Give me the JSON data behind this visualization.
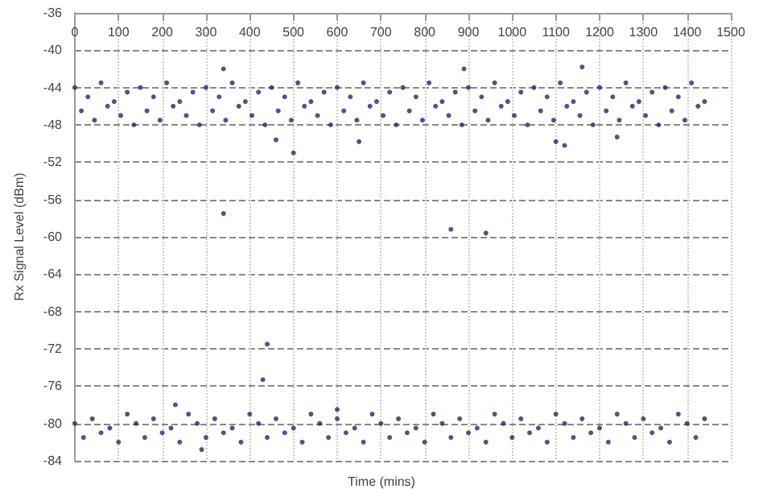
{
  "chart_data": {
    "type": "scatter",
    "xlabel": "Time (mins)",
    "ylabel": "Rx Signal Level (dBm)",
    "x": [
      0,
      15,
      30,
      45,
      60,
      75,
      90,
      105,
      120,
      135,
      150,
      165,
      180,
      195,
      210,
      225,
      240,
      255,
      270,
      285,
      300,
      315,
      330,
      345,
      360,
      375,
      390,
      405,
      420,
      435,
      450,
      465,
      480,
      495,
      510,
      525,
      540,
      555,
      570,
      585,
      600,
      615,
      630,
      645,
      660,
      675,
      690,
      705,
      720,
      735,
      750,
      765,
      780,
      795,
      810,
      825,
      840,
      855,
      870,
      885,
      900,
      915,
      930,
      945,
      960,
      975,
      990,
      1005,
      1020,
      1035,
      1050,
      1065,
      1080,
      1095,
      1110,
      1125,
      1140,
      1155,
      1170,
      1185,
      1200,
      1215,
      1230,
      1245,
      1260,
      1275,
      1290,
      1305,
      1320,
      1335,
      1350,
      1365,
      1380,
      1395,
      1410,
      1425,
      1440,
      0,
      20,
      40,
      60,
      80,
      100,
      120,
      140,
      160,
      180,
      200,
      220,
      240,
      260,
      280,
      300,
      320,
      340,
      360,
      380,
      400,
      420,
      440,
      460,
      480,
      500,
      520,
      540,
      560,
      580,
      600,
      620,
      640,
      660,
      680,
      700,
      720,
      740,
      760,
      780,
      800,
      820,
      840,
      860,
      880,
      900,
      920,
      940,
      960,
      980,
      1000,
      1020,
      1040,
      1060,
      1080,
      1100,
      1120,
      1140,
      1160,
      1180,
      1200,
      1220,
      1240,
      1260,
      1280,
      1300,
      1320,
      1340,
      1360,
      1380,
      1400,
      1420,
      1440,
      340,
      440,
      430,
      860,
      940,
      460,
      500,
      650,
      1100,
      1120,
      1240,
      340,
      890,
      1160,
      290,
      230,
      600
    ],
    "values": [
      -44,
      -46.5,
      -45,
      -47.5,
      -43.5,
      -46,
      -45.5,
      -47,
      -44.5,
      -48,
      -44,
      -46.5,
      -45,
      -47.5,
      -43.5,
      -46,
      -45.5,
      -47,
      -44.5,
      -48,
      -44,
      -46.5,
      -45,
      -47.5,
      -43.5,
      -46,
      -45.5,
      -47,
      -44.5,
      -48,
      -44,
      -46.5,
      -45,
      -47.5,
      -43.5,
      -46,
      -45.5,
      -47,
      -44.5,
      -48,
      -44,
      -46.5,
      -45,
      -47.5,
      -43.5,
      -46,
      -45.5,
      -47,
      -44.5,
      -48,
      -44,
      -46.5,
      -45,
      -47.5,
      -43.5,
      -46,
      -45.5,
      -47,
      -44.5,
      -48,
      -44,
      -46.5,
      -45,
      -47.5,
      -43.5,
      -46,
      -45.5,
      -47,
      -44.5,
      -48,
      -44,
      -46.5,
      -45,
      -47.5,
      -43.5,
      -46,
      -45.5,
      -47,
      -44.5,
      -48,
      -44,
      -46.5,
      -45,
      -47.5,
      -43.5,
      -46,
      -45.5,
      -47,
      -44.5,
      -48,
      -44,
      -46.5,
      -45,
      -47.5,
      -43.5,
      -46,
      -45.5,
      -80,
      -81.5,
      -79.5,
      -81,
      -80.5,
      -82,
      -79,
      -80,
      -81.5,
      -79.5,
      -81,
      -80.5,
      -82,
      -79,
      -80,
      -81.5,
      -79.5,
      -81,
      -80.5,
      -82,
      -79,
      -80,
      -81.5,
      -79.5,
      -81,
      -80.5,
      -82,
      -79,
      -80,
      -81.5,
      -79.5,
      -81,
      -80.5,
      -82,
      -79,
      -80,
      -81.5,
      -79.5,
      -81,
      -80.5,
      -82,
      -79,
      -80,
      -81.5,
      -79.5,
      -81,
      -80.5,
      -82,
      -79,
      -80,
      -81.5,
      -79.5,
      -81,
      -80.5,
      -82,
      -79,
      -80,
      -81.5,
      -79.5,
      -81,
      -80.5,
      -82,
      -79,
      -80,
      -81.5,
      -79.5,
      -81,
      -80.5,
      -82,
      -79,
      -80,
      -81.5,
      -79.5,
      -57.5,
      -71.5,
      -75.3,
      -59.2,
      -59.6,
      -49.6,
      -51,
      -49.8,
      -49.8,
      -50.2,
      -49.3,
      -42,
      -42,
      -41.8,
      -82.8,
      -78,
      -78.5
    ],
    "color": "#1f2a6b",
    "marker": "circle",
    "xlim": [
      0,
      1500
    ],
    "xticks": [
      0,
      100,
      200,
      300,
      400,
      500,
      600,
      700,
      800,
      900,
      1000,
      1100,
      1200,
      1300,
      1400,
      1500
    ],
    "ylim": [
      -84,
      -36
    ],
    "yticks": [
      -84,
      -80,
      -76,
      -72,
      -68,
      -64,
      -60,
      -56,
      -52,
      -48,
      -44,
      -40,
      -36
    ],
    "grid": true
  }
}
